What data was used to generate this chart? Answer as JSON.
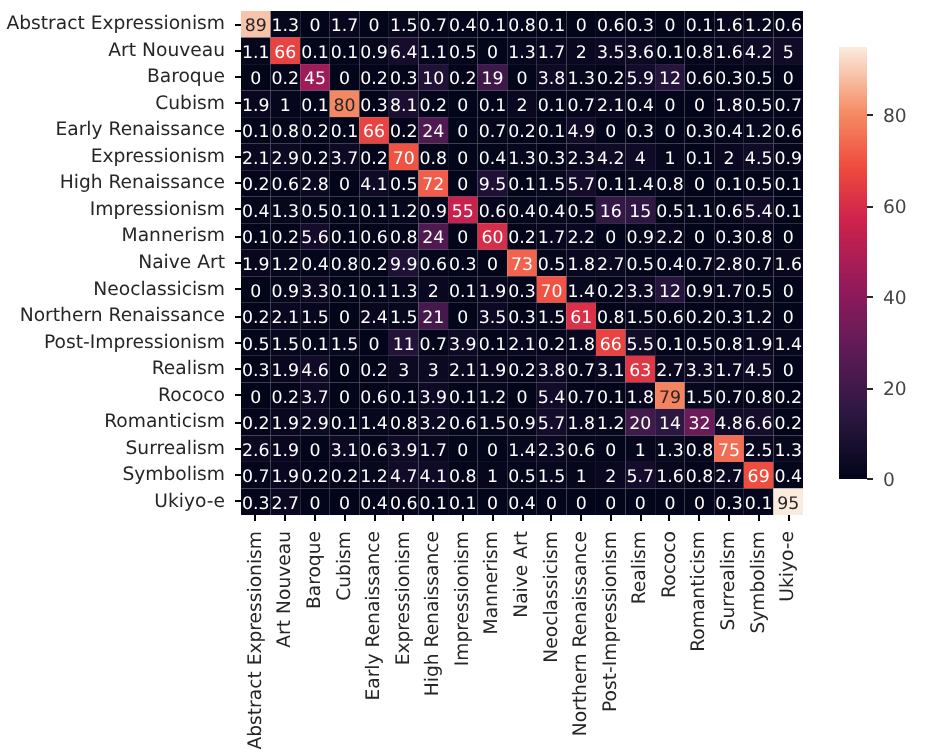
{
  "chart_data": {
    "type": "heatmap",
    "categories": [
      "Abstract Expressionism",
      "Art Nouveau",
      "Baroque",
      "Cubism",
      "Early Renaissance",
      "Expressionism",
      "High Renaissance",
      "Impressionism",
      "Mannerism",
      "Naive Art",
      "Neoclassicism",
      "Northern Renaissance",
      "Post-Impressionism",
      "Realism",
      "Rococo",
      "Romanticism",
      "Surrealism",
      "Symbolism",
      "Ukiyo-e"
    ],
    "y_categories": [
      "Abstract Expressionism",
      "Art Nouveau",
      "Baroque",
      "Cubism",
      "Early Renaissance",
      "Expressionism",
      "High Renaissance",
      "Impressionism",
      "Mannerism",
      "Naive Art",
      "Neoclassicism",
      "Northern Renaissance",
      "Post-Impressionism",
      "Realism",
      "Rococo",
      "Romanticism",
      "Surrealism",
      "Symbolism",
      "Ukiyo-e"
    ],
    "cells": [
      [
        89,
        1.3,
        0,
        1.7,
        0,
        1.5,
        0.7,
        0.4,
        0.1,
        0.8,
        0.1,
        0,
        0.6,
        0.3,
        0,
        0.1,
        1.6,
        1.2,
        0.6
      ],
      [
        1.1,
        66,
        0.1,
        0.1,
        0.9,
        6.4,
        1.1,
        0.5,
        0,
        1.3,
        1.7,
        2,
        3.5,
        3.6,
        0.1,
        0.8,
        1.6,
        4.2,
        5
      ],
      [
        0,
        0.2,
        45,
        0,
        0.2,
        0.3,
        10,
        0.2,
        19,
        0,
        3.8,
        1.3,
        0.2,
        5.9,
        12,
        0.6,
        0.3,
        0.5,
        0
      ],
      [
        1.9,
        1,
        0.1,
        80,
        0.3,
        8.1,
        0.2,
        0,
        0.1,
        2,
        0.1,
        0.7,
        2.1,
        0.4,
        0,
        0,
        1.8,
        0.5,
        0.7
      ],
      [
        0.1,
        0.8,
        0.2,
        0.1,
        66,
        0.2,
        24,
        0,
        0.7,
        0.2,
        0.1,
        4.9,
        0,
        0.3,
        0,
        0.3,
        0.4,
        1.2,
        0.6
      ],
      [
        2.1,
        2.9,
        0.2,
        3.7,
        0.2,
        70,
        0.8,
        0,
        0.4,
        1.3,
        0.3,
        2.3,
        4.2,
        4,
        1,
        0.1,
        2,
        4.5,
        0.9
      ],
      [
        0.2,
        0.6,
        2.8,
        0,
        4.1,
        0.5,
        72,
        0,
        9.5,
        0.1,
        1.5,
        5.7,
        0.1,
        1.4,
        0.8,
        0,
        0.1,
        0.5,
        0.1
      ],
      [
        0.4,
        1.3,
        0.5,
        0.1,
        0.1,
        1.2,
        0.9,
        55,
        0.6,
        0.4,
        0.4,
        0.5,
        16,
        15,
        0.5,
        1.1,
        0.6,
        5.4,
        0.1
      ],
      [
        0.1,
        0.2,
        5.6,
        0.1,
        0.6,
        0.8,
        24,
        0,
        60,
        0.2,
        1.7,
        2.2,
        0,
        0.9,
        2.2,
        0,
        0.3,
        0.8,
        0
      ],
      [
        1.9,
        1.2,
        0.4,
        0.8,
        0.2,
        9.9,
        0.6,
        0.3,
        0,
        73,
        0.5,
        1.8,
        2.7,
        0.5,
        0.4,
        0.7,
        2.8,
        0.7,
        1.6
      ],
      [
        0,
        0.9,
        3.3,
        0.1,
        0.1,
        1.3,
        2,
        0.1,
        1.9,
        0.3,
        70,
        1.4,
        0.2,
        3.3,
        12,
        0.9,
        1.7,
        0.5,
        0
      ],
      [
        0.2,
        2.1,
        1.5,
        0,
        2.4,
        1.5,
        21,
        0,
        3.5,
        0.3,
        1.5,
        61,
        0.8,
        1.5,
        0.6,
        0.2,
        0.3,
        1.2,
        0
      ],
      [
        0.5,
        1.5,
        0.1,
        1.5,
        0,
        11,
        0.7,
        3.9,
        0.1,
        2.1,
        0.2,
        1.8,
        66,
        5.5,
        0.1,
        0.5,
        0.8,
        1.9,
        1.4
      ],
      [
        0.3,
        1.9,
        4.6,
        0,
        0.2,
        3,
        3,
        2.1,
        1.9,
        0.2,
        3.8,
        0.7,
        3.1,
        63,
        2.7,
        3.3,
        1.7,
        4.5,
        0
      ],
      [
        0,
        0.2,
        3.7,
        0,
        0.6,
        0.1,
        3.9,
        0.1,
        1.2,
        0,
        5.4,
        0.7,
        0.1,
        1.8,
        79,
        1.5,
        0.7,
        0.8,
        0.2
      ],
      [
        0.2,
        1.9,
        2.9,
        0.1,
        1.4,
        0.8,
        3.2,
        0.6,
        1.5,
        0.9,
        5.7,
        1.8,
        1.2,
        20,
        14,
        32,
        4.8,
        6.6,
        0.2
      ],
      [
        2.6,
        1.9,
        0,
        3.1,
        0.6,
        3.9,
        1.7,
        0,
        0,
        1.4,
        2.3,
        0.6,
        0,
        1,
        1.3,
        0.8,
        75,
        2.5,
        1.3
      ],
      [
        0.7,
        1.9,
        0.2,
        0.2,
        1.2,
        4.7,
        4.1,
        0.8,
        1,
        0.5,
        1.5,
        1,
        2,
        5.7,
        1.6,
        0.8,
        2.7,
        69,
        0.4
      ],
      [
        0.3,
        2.7,
        0,
        0,
        0.4,
        0.6,
        0.1,
        0.1,
        0,
        0.4,
        0,
        0,
        0,
        0,
        0,
        0,
        0.3,
        0.1,
        95
      ]
    ],
    "data_labels": true,
    "clim": [
      0,
      95
    ],
    "cticks": [
      0,
      20,
      40,
      60,
      80
    ]
  }
}
